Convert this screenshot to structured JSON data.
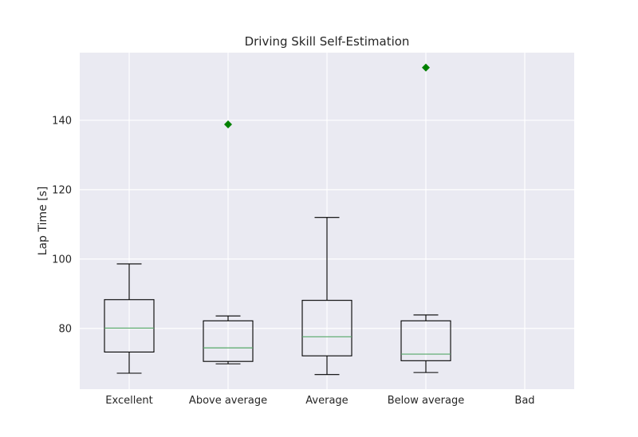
{
  "chart_data": {
    "type": "box",
    "title": "Driving Skill Self-Estimation",
    "xlabel": "",
    "ylabel": "Lap Time [s]",
    "categories": [
      "Excellent",
      "Above average",
      "Average",
      "Below average",
      "Bad"
    ],
    "ylim": [
      62.5,
      159.5
    ],
    "yticks": [
      80,
      100,
      120,
      140
    ],
    "grid": true,
    "colors": {
      "background": "#eaeaf2",
      "grid": "#ffffff",
      "box": "#000000",
      "median": "#55a868",
      "outlier": "#008000"
    },
    "boxes": [
      {
        "category": "Excellent",
        "whisker_low": 67.1,
        "q1": 73.2,
        "median": 80.1,
        "q3": 88.3,
        "whisker_high": 98.6,
        "outliers": []
      },
      {
        "category": "Above average",
        "whisker_low": 69.8,
        "q1": 70.5,
        "median": 74.4,
        "q3": 82.2,
        "whisker_high": 83.6,
        "outliers": [
          138.8
        ]
      },
      {
        "category": "Average",
        "whisker_low": 66.7,
        "q1": 72.1,
        "median": 77.6,
        "q3": 88.1,
        "whisker_high": 112.0,
        "outliers": []
      },
      {
        "category": "Below average",
        "whisker_low": 67.3,
        "q1": 70.7,
        "median": 72.6,
        "q3": 82.2,
        "whisker_high": 83.9,
        "outliers": [
          155.2
        ]
      },
      {
        "category": "Bad",
        "empty": true,
        "outliers": []
      }
    ]
  }
}
